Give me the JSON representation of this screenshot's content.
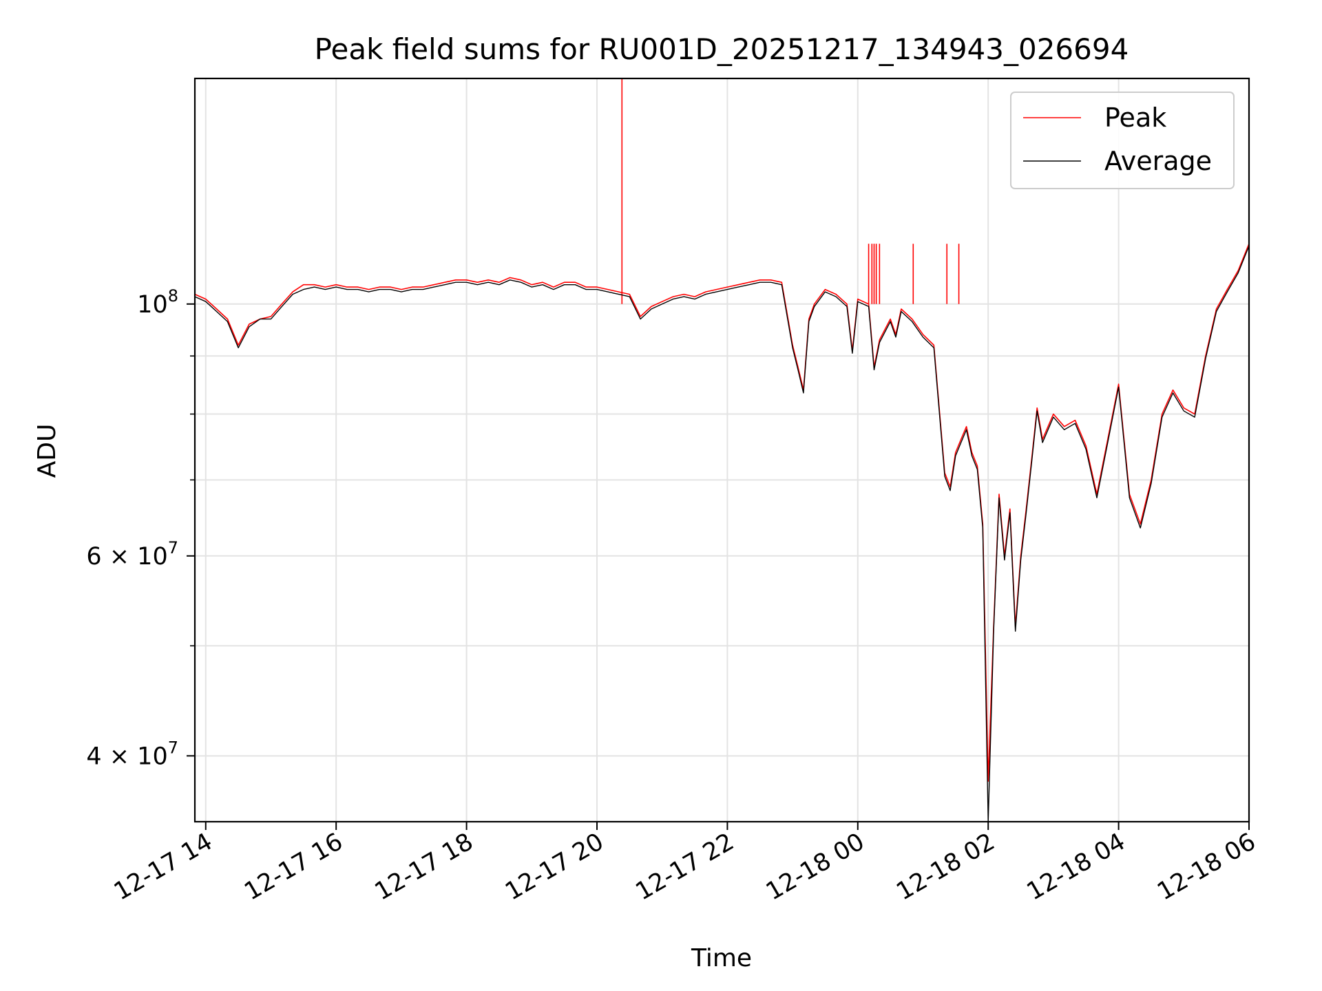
{
  "chart_data": {
    "type": "line",
    "title": "Peak field sums for RU001D_20251217_134943_026694",
    "xlabel": "Time",
    "ylabel": "ADU",
    "yscale": "log",
    "ylim": [
      35000000,
      158000000
    ],
    "xlim": [
      "2025-12-17 13:50",
      "2025-12-18 06:00"
    ],
    "grid": true,
    "legend_position": "top-right",
    "x_ticks": [
      {
        "value": "2025-12-17 14:00",
        "label": "12-17 14"
      },
      {
        "value": "2025-12-17 16:00",
        "label": "12-17 16"
      },
      {
        "value": "2025-12-17 18:00",
        "label": "12-17 18"
      },
      {
        "value": "2025-12-17 20:00",
        "label": "12-17 20"
      },
      {
        "value": "2025-12-17 22:00",
        "label": "12-17 22"
      },
      {
        "value": "2025-12-18 00:00",
        "label": "12-18 00"
      },
      {
        "value": "2025-12-18 02:00",
        "label": "12-18 02"
      },
      {
        "value": "2025-12-18 04:00",
        "label": "12-18 04"
      },
      {
        "value": "2025-12-18 06:00",
        "label": "12-18 06"
      }
    ],
    "y_ticks": [
      {
        "value": 100000000,
        "base": "10",
        "exp": "8"
      },
      {
        "value": 60000000,
        "base": "6 × 10",
        "exp": "7"
      },
      {
        "value": 40000000,
        "base": "4 × 10",
        "exp": "7"
      }
    ],
    "y_minor_ticks": [
      50000000,
      70000000,
      80000000,
      90000000,
      200000000
    ],
    "x": [
      "2025-12-17 13:50",
      "2025-12-17 14:00",
      "2025-12-17 14:10",
      "2025-12-17 14:20",
      "2025-12-17 14:30",
      "2025-12-17 14:40",
      "2025-12-17 14:50",
      "2025-12-17 15:00",
      "2025-12-17 15:10",
      "2025-12-17 15:20",
      "2025-12-17 15:30",
      "2025-12-17 15:40",
      "2025-12-17 15:50",
      "2025-12-17 16:00",
      "2025-12-17 16:10",
      "2025-12-17 16:20",
      "2025-12-17 16:30",
      "2025-12-17 16:40",
      "2025-12-17 16:50",
      "2025-12-17 17:00",
      "2025-12-17 17:10",
      "2025-12-17 17:20",
      "2025-12-17 17:30",
      "2025-12-17 17:40",
      "2025-12-17 17:50",
      "2025-12-17 18:00",
      "2025-12-17 18:10",
      "2025-12-17 18:20",
      "2025-12-17 18:30",
      "2025-12-17 18:40",
      "2025-12-17 18:50",
      "2025-12-17 19:00",
      "2025-12-17 19:10",
      "2025-12-17 19:20",
      "2025-12-17 19:30",
      "2025-12-17 19:40",
      "2025-12-17 19:50",
      "2025-12-17 20:00",
      "2025-12-17 20:10",
      "2025-12-17 20:20",
      "2025-12-17 20:30",
      "2025-12-17 20:40",
      "2025-12-17 20:50",
      "2025-12-17 21:00",
      "2025-12-17 21:10",
      "2025-12-17 21:20",
      "2025-12-17 21:30",
      "2025-12-17 21:40",
      "2025-12-17 21:50",
      "2025-12-17 22:00",
      "2025-12-17 22:10",
      "2025-12-17 22:20",
      "2025-12-17 22:30",
      "2025-12-17 22:40",
      "2025-12-17 22:50",
      "2025-12-17 23:00",
      "2025-12-17 23:05",
      "2025-12-17 23:10",
      "2025-12-17 23:15",
      "2025-12-17 23:20",
      "2025-12-17 23:30",
      "2025-12-17 23:40",
      "2025-12-17 23:50",
      "2025-12-17 23:55",
      "2025-12-18 00:00",
      "2025-12-18 00:10",
      "2025-12-18 00:15",
      "2025-12-18 00:20",
      "2025-12-18 00:25",
      "2025-12-18 00:30",
      "2025-12-18 00:35",
      "2025-12-18 00:40",
      "2025-12-18 00:50",
      "2025-12-18 01:00",
      "2025-12-18 01:10",
      "2025-12-18 01:20",
      "2025-12-18 01:25",
      "2025-12-18 01:30",
      "2025-12-18 01:35",
      "2025-12-18 01:40",
      "2025-12-18 01:45",
      "2025-12-18 01:50",
      "2025-12-18 01:55",
      "2025-12-18 02:00",
      "2025-12-18 02:05",
      "2025-12-18 02:10",
      "2025-12-18 02:15",
      "2025-12-18 02:20",
      "2025-12-18 02:25",
      "2025-12-18 02:30",
      "2025-12-18 02:35",
      "2025-12-18 02:40",
      "2025-12-18 02:45",
      "2025-12-18 02:50",
      "2025-12-18 03:00",
      "2025-12-18 03:10",
      "2025-12-18 03:20",
      "2025-12-18 03:30",
      "2025-12-18 03:40",
      "2025-12-18 03:50",
      "2025-12-18 04:00",
      "2025-12-18 04:10",
      "2025-12-18 04:20",
      "2025-12-18 04:30",
      "2025-12-18 04:40",
      "2025-12-18 04:50",
      "2025-12-18 05:00",
      "2025-12-18 05:10",
      "2025-12-18 05:20",
      "2025-12-18 05:30",
      "2025-12-18 05:40",
      "2025-12-18 05:50",
      "2025-12-18 06:00"
    ],
    "series": [
      {
        "name": "Peak",
        "color": "#ff0000",
        "values": [
          102000000,
          101000000,
          99000000,
          97000000,
          92000000,
          96000000,
          97000000,
          97500000,
          100000000,
          102500000,
          104000000,
          104000000,
          103500000,
          104000000,
          103500000,
          103500000,
          103000000,
          103500000,
          103500000,
          103000000,
          103500000,
          103500000,
          104000000,
          104500000,
          105000000,
          105000000,
          104500000,
          105000000,
          104500000,
          105500000,
          105000000,
          104000000,
          104500000,
          103500000,
          104500000,
          104500000,
          103500000,
          103500000,
          103000000,
          102500000,
          102000000,
          97500000,
          99500000,
          100500000,
          101500000,
          102000000,
          101500000,
          102500000,
          103000000,
          103500000,
          104000000,
          104500000,
          105000000,
          105000000,
          104500000,
          92000000,
          88000000,
          84000000,
          97000000,
          100000000,
          103000000,
          102000000,
          100000000,
          91000000,
          101000000,
          100000000,
          88000000,
          93000000,
          95000000,
          97000000,
          94000000,
          99000000,
          97000000,
          94000000,
          92000000,
          71000000,
          69000000,
          74000000,
          76000000,
          78000000,
          74000000,
          72000000,
          64000000,
          38000000,
          52000000,
          68000000,
          60000000,
          66000000,
          52000000,
          60000000,
          66000000,
          73000000,
          81000000,
          76000000,
          80000000,
          78000000,
          79000000,
          75000000,
          68000000,
          76000000,
          85000000,
          68000000,
          64000000,
          70000000,
          80000000,
          84000000,
          81000000,
          80000000,
          90000000,
          99000000,
          103000000,
          107000000,
          113000000
        ],
        "spikes": [
          {
            "x": "2025-12-17 20:23",
            "value": 158000000
          },
          {
            "x": "2025-12-18 00:10",
            "value": 113000000
          },
          {
            "x": "2025-12-18 00:13",
            "value": 113000000
          },
          {
            "x": "2025-12-18 00:15",
            "value": 113000000
          },
          {
            "x": "2025-12-18 00:17",
            "value": 113000000
          },
          {
            "x": "2025-12-18 00:20",
            "value": 113000000
          },
          {
            "x": "2025-12-18 00:51",
            "value": 113000000
          },
          {
            "x": "2025-12-18 01:22",
            "value": 113000000
          },
          {
            "x": "2025-12-18 01:33",
            "value": 113000000
          }
        ]
      },
      {
        "name": "Average",
        "color": "#000000",
        "values": [
          101500000,
          100500000,
          98500000,
          96500000,
          91500000,
          95500000,
          97000000,
          97000000,
          99500000,
          102000000,
          103000000,
          103500000,
          103000000,
          103500000,
          103000000,
          103000000,
          102500000,
          103000000,
          103000000,
          102500000,
          103000000,
          103000000,
          103500000,
          104000000,
          104500000,
          104500000,
          104000000,
          104500000,
          104000000,
          105000000,
          104500000,
          103500000,
          104000000,
          103000000,
          104000000,
          104000000,
          103000000,
          103000000,
          102500000,
          102000000,
          101500000,
          97000000,
          99000000,
          100000000,
          101000000,
          101500000,
          101000000,
          102000000,
          102500000,
          103000000,
          103500000,
          104000000,
          104500000,
          104500000,
          104000000,
          91500000,
          87500000,
          83500000,
          96500000,
          99500000,
          102500000,
          101500000,
          99500000,
          90500000,
          100500000,
          99500000,
          87500000,
          92500000,
          94500000,
          96500000,
          93500000,
          98500000,
          96500000,
          93500000,
          91500000,
          70500000,
          68500000,
          73500000,
          75500000,
          77500000,
          73500000,
          71500000,
          63500000,
          35000000,
          51500000,
          67500000,
          59500000,
          65500000,
          51500000,
          59500000,
          65500000,
          72500000,
          80500000,
          75500000,
          79500000,
          77500000,
          78500000,
          74500000,
          67500000,
          75500000,
          84500000,
          67500000,
          63500000,
          69500000,
          79500000,
          83500000,
          80500000,
          79500000,
          89500000,
          98500000,
          102500000,
          106500000,
          112500000
        ]
      }
    ]
  }
}
